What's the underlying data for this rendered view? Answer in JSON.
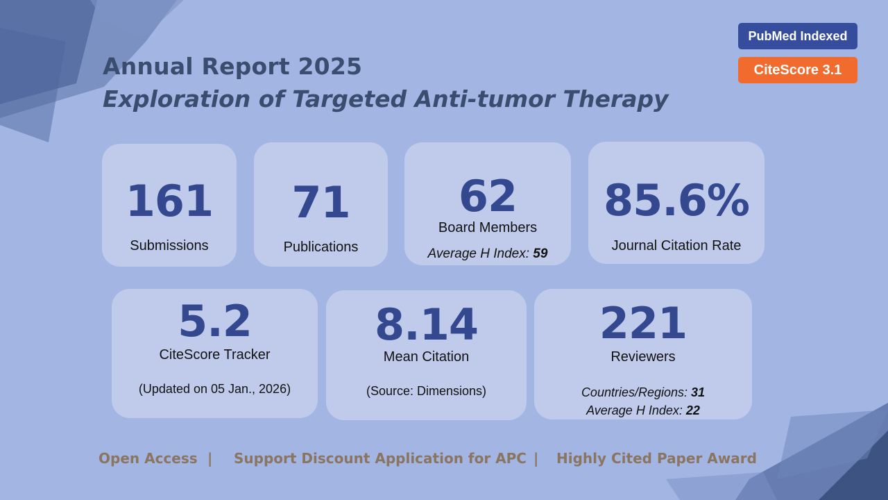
{
  "header": {
    "title": "Annual Report 2025",
    "subtitle": "Exploration of Targeted Anti-tumor Therapy"
  },
  "badges": {
    "pubmed": "PubMed Indexed",
    "citescore": "CiteScore 3.1"
  },
  "stats": {
    "submissions": {
      "value": "161",
      "label": "Submissions"
    },
    "publications": {
      "value": "71",
      "label": "Publications"
    },
    "board": {
      "value": "62",
      "label": "Board Members",
      "hindex_label": "Average H Index: ",
      "hindex_value": "59"
    },
    "citation_rate": {
      "value": "85.6%",
      "label": "Journal Citation Rate"
    },
    "tracker": {
      "value": "5.2",
      "label": "CiteScore Tracker",
      "note": "(Updated on 05 Jan., 2026)"
    },
    "mean_citation": {
      "value": "8.14",
      "label": "Mean Citation",
      "note": "(Source: Dimensions)"
    },
    "reviewers": {
      "value": "221",
      "label": "Reviewers",
      "countries_label": "Countries/Regions: ",
      "countries_value": "31",
      "hindex_label": "Average H Index: ",
      "hindex_value": "22"
    }
  },
  "footer": {
    "item1": "Open Access",
    "sep": "|",
    "item2": "Support Discount Application for APC",
    "item3": "Highly Cited Paper Award"
  },
  "colors": {
    "background": "#a3b5e3",
    "card": "#c0cbeb",
    "number": "#33488f",
    "title": "#3b4d6e",
    "pubmed_badge": "#354d9c",
    "citescore_badge": "#f26b2e",
    "footer_text": "#8a7560"
  }
}
